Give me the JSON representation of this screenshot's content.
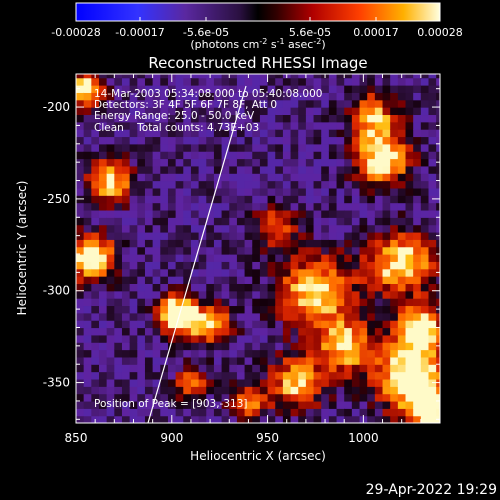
{
  "colorbar": {
    "tick_labels": [
      "-0.00028",
      "-0.00017",
      "-5.6e-05",
      "5.6e-05",
      "0.00017",
      "0.00028"
    ],
    "unit_text": "(photons cm",
    "unit_exp1": "-2",
    "unit_mid": " s",
    "unit_exp2": "-1",
    "unit_mid2": " asec",
    "unit_exp3": "-2",
    "unit_end": ")",
    "range": [
      -0.00028,
      0.00028
    ]
  },
  "plot": {
    "title": "Reconstructed RHESSI Image",
    "info_lines": [
      "14-Mar-2003 05:34:08.000 to 05:40:08.000",
      "Detectors: 3F 4F 5F 6F 7F 8F, Att 0",
      "Energy Range: 25.0 - 50.0 keV",
      "Clean    Total counts: 4.73E+03"
    ],
    "peak_text": "Position of Peak = [903,-313]",
    "xlabel": "Heliocentric X (arcsec)",
    "ylabel": "Heliocentric Y (arcsec)",
    "xticks": [
      "850",
      "900",
      "950",
      "1000"
    ],
    "yticks": [
      "-200",
      "-250",
      "-300",
      "-350"
    ],
    "xrange": [
      850,
      1040
    ],
    "yrange": [
      -372,
      -182
    ]
  },
  "footer": {
    "timestamp": "29-Apr-2022 19:29"
  }
}
